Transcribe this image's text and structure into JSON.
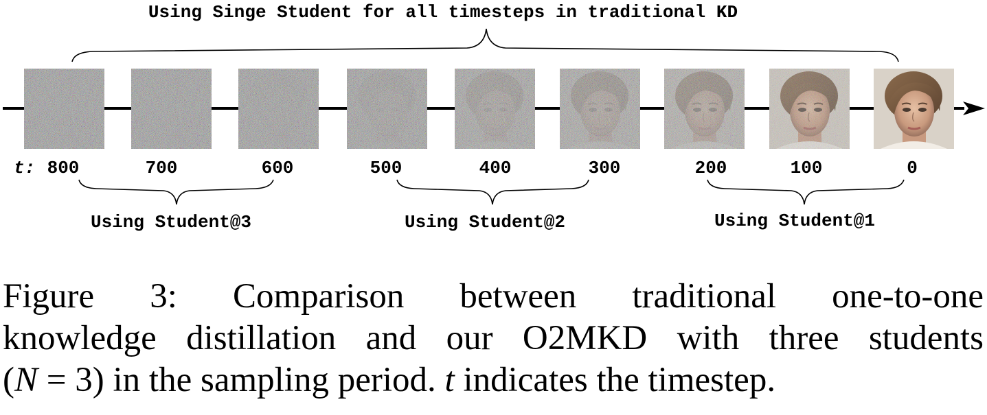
{
  "top_label": "Using Singe Student for all timesteps in traditional KD",
  "t_prefix": "t:",
  "timesteps": [
    "800",
    "700",
    "600",
    "500",
    "400",
    "300",
    "200",
    "100",
    "0"
  ],
  "frame_noise": [
    1.0,
    1.0,
    0.98,
    0.95,
    0.88,
    0.8,
    0.68,
    0.32,
    0.0
  ],
  "groups": [
    {
      "label": "Using Student@3"
    },
    {
      "label": "Using Student@2"
    },
    {
      "label": "Using Student@1"
    }
  ],
  "caption": {
    "line1": "Figure 3: Comparison between traditional one-to-one",
    "line2": "knowledge distillation and our O2MKD with three students",
    "line3_a": "(",
    "line3_var": "N",
    "line3_b": " = 3) in the sampling period. ",
    "line3_t": "t",
    "line3_c": " indicates the timestep."
  }
}
